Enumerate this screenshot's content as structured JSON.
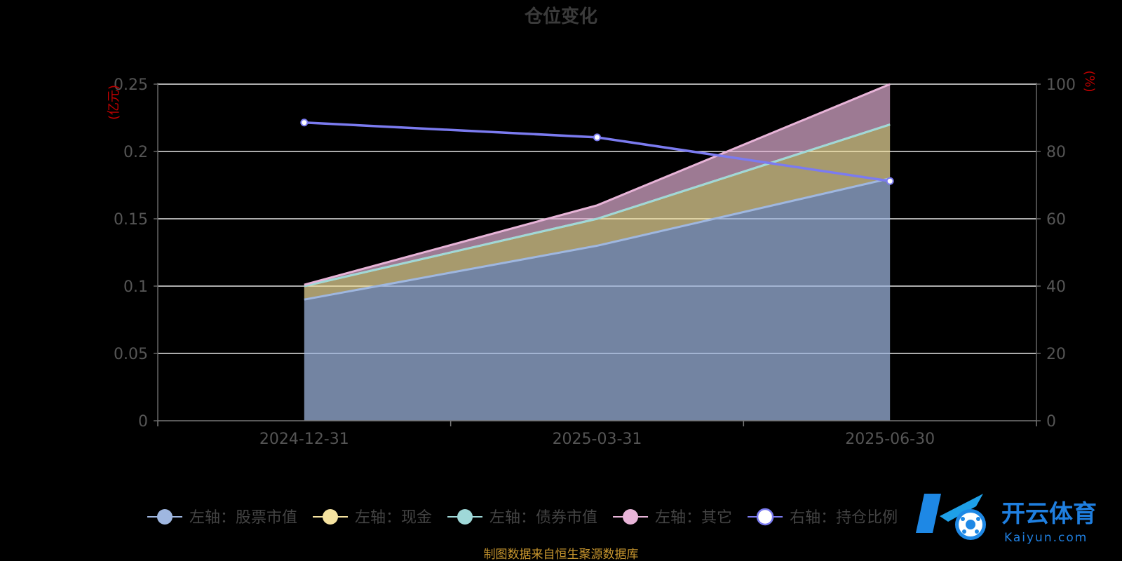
{
  "chart_data": {
    "type": "area",
    "title": "仓位变化",
    "categories": [
      "2024-12-31",
      "2025-03-31",
      "2025-06-30"
    ],
    "left_axis": {
      "unit": "(亿元)",
      "range": [
        0,
        0.25
      ],
      "ticks": [
        "0",
        "0.05",
        "0.1",
        "0.15",
        "0.2",
        "0.25"
      ]
    },
    "right_axis": {
      "unit": "(%)",
      "range": [
        0,
        100
      ],
      "ticks": [
        "0",
        "20",
        "40",
        "60",
        "80",
        "100"
      ]
    },
    "stacked_series": [
      {
        "name": "左轴：股票市值",
        "axis": "left",
        "values": [
          0.09,
          0.13,
          0.18
        ],
        "color": "#9fb7e0"
      },
      {
        "name": "左轴：现金",
        "axis": "left",
        "values": [
          0.01,
          0.02,
          0.04
        ],
        "color": "#f6e3a0"
      },
      {
        "name": "左轴：债券市值",
        "axis": "left",
        "values": [
          0,
          0,
          0
        ],
        "color": "#9fd8d8"
      },
      {
        "name": "左轴：其它",
        "axis": "left",
        "values": [
          0.001,
          0.01,
          0.03
        ],
        "color": "#e8b4d8"
      }
    ],
    "line_series": [
      {
        "name": "右轴：持仓比例",
        "axis": "right",
        "values": [
          88.6,
          84.2,
          71.2
        ],
        "color": "#7b7bf0"
      }
    ],
    "grid": true,
    "legend": "bottom"
  },
  "source_note": "制图数据来自恒生聚源数据库",
  "watermark": {
    "cn": "开云体育",
    "en": "Kaiyun.com",
    "logo_letter": "K"
  }
}
